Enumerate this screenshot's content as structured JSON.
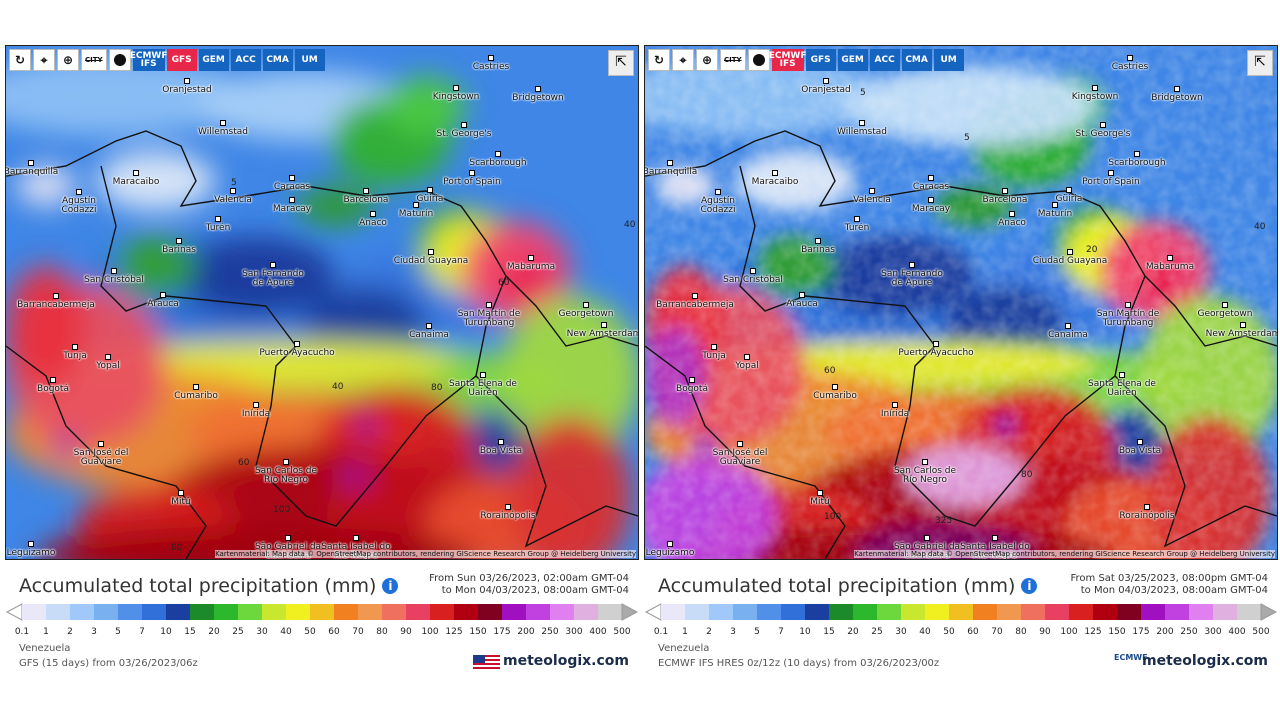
{
  "title": "Accumulated total precipitation (mm)",
  "models": [
    "ECMWF IFS",
    "GFS",
    "GEM",
    "ACC",
    "CMA",
    "UM"
  ],
  "city_toggle": "CITY",
  "attribution": "Kartenmaterial: Map data © OpenStreetMap contributors, rendering GIScience Research Group @ Heidelberg University",
  "brand": "meteologix.com",
  "legend_scale": [
    0.1,
    1,
    2,
    3,
    5,
    7,
    10,
    15,
    20,
    25,
    30,
    40,
    50,
    60,
    70,
    80,
    90,
    100,
    125,
    150,
    175,
    200,
    250,
    300,
    400,
    500
  ],
  "cities": [
    "Castries",
    "Kingstown",
    "Bridgetown",
    "Oranjestad",
    "Willemstad",
    "St. George's",
    "Scarborough",
    "Port of Spain",
    "Barranquilla",
    "Maracaibo",
    "Caracas",
    "Barcelona",
    "Güiria",
    "Valencia",
    "Maracay",
    "Maturín",
    "Agustín Codazzi",
    "Anaco",
    "Turén",
    "Barinas",
    "Ciudad Guayana",
    "Mabaruma",
    "San Fernando de Apure",
    "San Cristóbal",
    "Arauca",
    "Barrancabermeja",
    "San Martín de Turumbang",
    "Georgetown",
    "New Amsterdam",
    "Canaima",
    "Puerto Ayacucho",
    "Tunja",
    "Yopal",
    "Bogotá",
    "Cumaribo",
    "Santa Elena de Uairén",
    "Inírida",
    "San José del Guaviare",
    "Boa Vista",
    "San Carlos de Río Negro",
    "Mitú",
    "Rorainópolis",
    "São Gabriel da Cachoeira",
    "Santa Isabel do Rio Negro",
    "Leguizamo"
  ],
  "panels": [
    {
      "active_model": "GFS",
      "period": [
        "From Sun 03/26/2023, 02:00am GMT-04",
        "to Mon 04/03/2023, 08:00am GMT-04"
      ],
      "region": "Venezuela",
      "model_run": "GFS (15 days) from 03/26/2023/06z",
      "contour_labels": [
        5,
        40,
        40,
        60,
        80,
        100,
        80,
        60
      ]
    },
    {
      "active_model": "ECMWF IFS",
      "period": [
        "From Sat 03/25/2023, 08:00pm GMT-04",
        "to Mon 04/03/2023, 08:00am GMT-04"
      ],
      "region": "Venezuela",
      "model_run": "ECMWF IFS HRES 0z/12z (10 days) from 03/26/2023/00z",
      "logo": "ECMWF",
      "contour_labels": [
        5,
        5,
        40,
        60,
        80,
        100,
        325,
        20
      ]
    }
  ]
}
